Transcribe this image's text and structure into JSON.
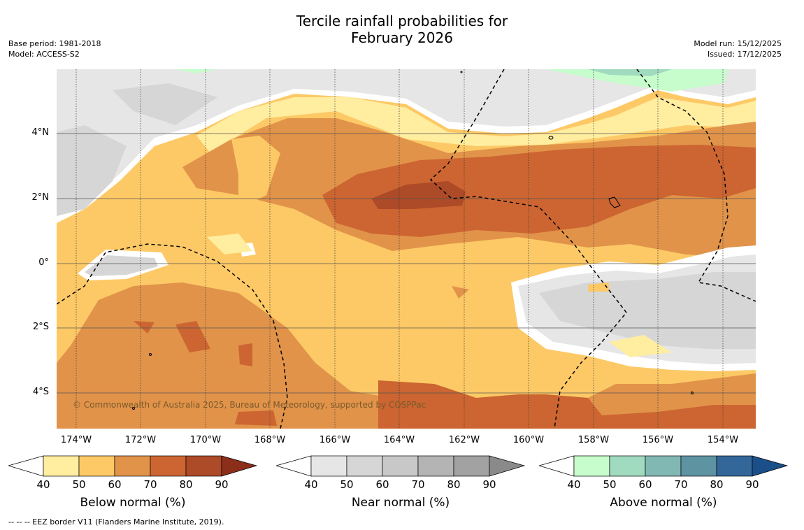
{
  "header": {
    "title_line1": "Tercile rainfall probabilities for",
    "title_line2": "February 2026",
    "base_period": "Base period: 1981-2018",
    "model": "Model: ACCESS-S2",
    "model_run": "Model run: 15/12/2025",
    "issued": "Issued: 17/12/2025"
  },
  "map": {
    "lat_labels": [
      "4°N",
      "2°N",
      "0°",
      "2°S",
      "4°S"
    ],
    "lon_labels": [
      "174°W",
      "172°W",
      "170°W",
      "168°W",
      "166°W",
      "164°W",
      "162°W",
      "160°W",
      "158°W",
      "156°W",
      "154°W"
    ],
    "copyright": "© Commonwealth of Australia 2025, Bureau of Meteorology, supported by COSPPac"
  },
  "colorbars": [
    {
      "title": "Below normal (%)",
      "ticks": [
        "40",
        "50",
        "60",
        "70",
        "80",
        "90"
      ],
      "colors": [
        "#ffeda0",
        "#fdc966",
        "#e1934a",
        "#cc6531",
        "#ad4a27",
        "#8b2f1a"
      ]
    },
    {
      "title": "Near normal (%)",
      "ticks": [
        "40",
        "50",
        "60",
        "70",
        "80",
        "90"
      ],
      "colors": [
        "#e6e6e6",
        "#d6d6d6",
        "#c8c8c8",
        "#b4b4b4",
        "#a2a2a2",
        "#8a8a8a"
      ]
    },
    {
      "title": "Above normal (%)",
      "ticks": [
        "40",
        "50",
        "60",
        "70",
        "80",
        "90"
      ],
      "colors": [
        "#c7fccc",
        "#a1dbbf",
        "#82b8b4",
        "#5e93a2",
        "#336699",
        "#1a4f8a"
      ]
    }
  ],
  "footer": "--  --  -- EEZ border V11 (Flanders Marine Institute, 2019)."
}
